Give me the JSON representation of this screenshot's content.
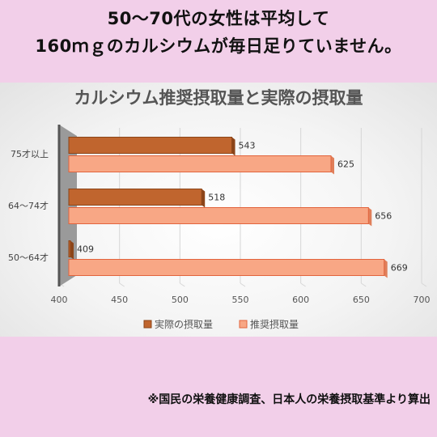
{
  "header": {
    "line1": "50～70代の女性は平均して",
    "line2": "160ｍｇのカルシウムが毎日足りていません。"
  },
  "chart_data": {
    "type": "bar",
    "orientation": "horizontal",
    "title": "カルシウム推奨摂取量と実際の摂取量",
    "categories": [
      "75才以上",
      "64～74才",
      "50～64才"
    ],
    "series": [
      {
        "name": "実際の摂取量",
        "values": [
          543,
          518,
          409
        ],
        "color": "#c0652e"
      },
      {
        "name": "推奨摂取量",
        "values": [
          625,
          656,
          669
        ],
        "color": "#f8a785"
      }
    ],
    "xlim": [
      400,
      700
    ],
    "xticks": [
      400,
      450,
      500,
      550,
      600,
      650,
      700
    ],
    "grid": true,
    "legend_position": "bottom",
    "style": "3d"
  },
  "footer": {
    "note": "※国民の栄養健康調査、日本人の栄養摂取基準より算出"
  }
}
